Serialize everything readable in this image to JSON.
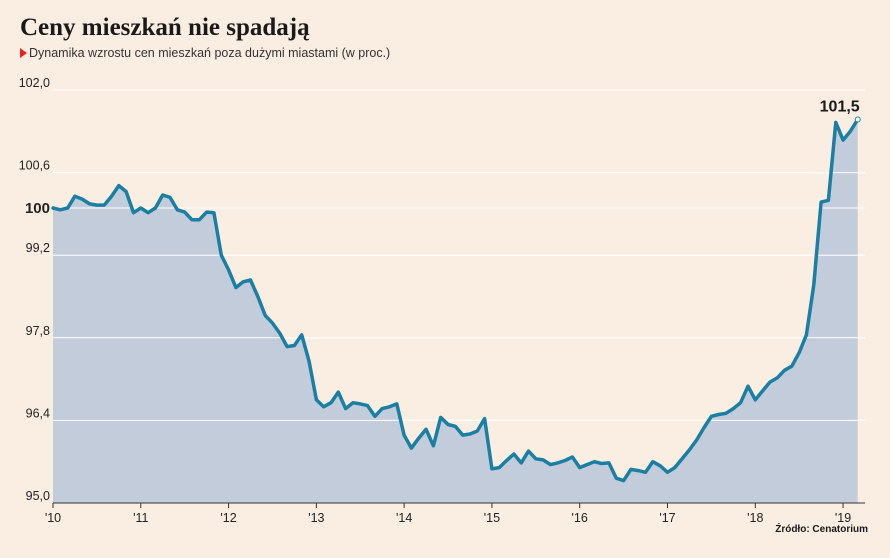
{
  "header": {
    "title": "Ceny mieszkań nie spadają",
    "subtitle": "Dynamika wzrostu cen mieszkań poza dużymi miastami (w proc.)"
  },
  "source": "Źródło: Cenatorium",
  "colors": {
    "background": "#faeee2",
    "line": "#1a7fa3",
    "area": "#c3ccdb",
    "gridline": "#ffffff",
    "marker": "#e3261b"
  },
  "chart_data": {
    "type": "area",
    "title": "Ceny mieszkań nie spadają",
    "subtitle": "Dynamika wzrostu cen mieszkań poza dużymi miastami (w proc.)",
    "xlabel": "",
    "ylabel": "",
    "ylim": [
      95.0,
      102.0
    ],
    "xlim": [
      2010.0,
      2019.25
    ],
    "grid": true,
    "y_ticks": [
      {
        "value": 95.0,
        "label": "95,0",
        "bold": false
      },
      {
        "value": 96.4,
        "label": "96,4",
        "bold": false
      },
      {
        "value": 97.8,
        "label": "97,8",
        "bold": false
      },
      {
        "value": 99.2,
        "label": "99,2",
        "bold": false
      },
      {
        "value": 100.0,
        "label": "100",
        "bold": true
      },
      {
        "value": 100.6,
        "label": "100,6",
        "bold": false
      },
      {
        "value": 102.0,
        "label": "102,0",
        "bold": false
      }
    ],
    "x_ticks": [
      {
        "value": 2010,
        "label": "'10"
      },
      {
        "value": 2011,
        "label": "'11"
      },
      {
        "value": 2012,
        "label": "'12"
      },
      {
        "value": 2013,
        "label": "'13"
      },
      {
        "value": 2014,
        "label": "'14"
      },
      {
        "value": 2015,
        "label": "'15"
      },
      {
        "value": 2016,
        "label": "'16"
      },
      {
        "value": 2017,
        "label": "'17"
      },
      {
        "value": 2018,
        "label": "'18"
      },
      {
        "value": 2019,
        "label": "'19"
      }
    ],
    "end_label": "101,5",
    "series": [
      {
        "x": [
          2010.0,
          2010.083,
          2010.167,
          2010.25,
          2010.333,
          2010.417,
          2010.5,
          2010.583,
          2010.667,
          2010.75,
          2010.833,
          2010.917,
          2011.0,
          2011.083,
          2011.167,
          2011.25,
          2011.333,
          2011.417,
          2011.5,
          2011.583,
          2011.667,
          2011.75,
          2011.833,
          2011.917,
          2012.0,
          2012.083,
          2012.167,
          2012.25,
          2012.333,
          2012.417,
          2012.5,
          2012.583,
          2012.667,
          2012.75,
          2012.833,
          2012.917,
          2013.0,
          2013.083,
          2013.167,
          2013.25,
          2013.333,
          2013.417,
          2013.5,
          2013.583,
          2013.667,
          2013.75,
          2013.833,
          2013.917,
          2014.0,
          2014.083,
          2014.167,
          2014.25,
          2014.333,
          2014.417,
          2014.5,
          2014.583,
          2014.667,
          2014.75,
          2014.833,
          2014.917,
          2015.0,
          2015.083,
          2015.167,
          2015.25,
          2015.333,
          2015.417,
          2015.5,
          2015.583,
          2015.667,
          2015.75,
          2015.833,
          2015.917,
          2016.0,
          2016.083,
          2016.167,
          2016.25,
          2016.333,
          2016.417,
          2016.5,
          2016.583,
          2016.667,
          2016.75,
          2016.833,
          2016.917,
          2017.0,
          2017.083,
          2017.167,
          2017.25,
          2017.333,
          2017.417,
          2017.5,
          2017.583,
          2017.667,
          2017.75,
          2017.833,
          2017.917,
          2018.0,
          2018.083,
          2018.167,
          2018.25,
          2018.333,
          2018.417,
          2018.5,
          2018.583,
          2018.667,
          2018.75,
          2018.833,
          2018.917,
          2019.0,
          2019.083,
          2019.167
        ],
        "values": [
          100.0,
          99.97,
          100.0,
          100.2,
          100.15,
          100.07,
          100.05,
          100.05,
          100.2,
          100.38,
          100.28,
          99.92,
          100.0,
          99.92,
          100.0,
          100.22,
          100.18,
          99.97,
          99.93,
          99.8,
          99.8,
          99.93,
          99.92,
          99.2,
          98.95,
          98.65,
          98.75,
          98.78,
          98.5,
          98.18,
          98.05,
          97.88,
          97.65,
          97.67,
          97.85,
          97.4,
          96.75,
          96.63,
          96.7,
          96.88,
          96.6,
          96.7,
          96.68,
          96.65,
          96.47,
          96.6,
          96.63,
          96.68,
          96.15,
          95.93,
          96.1,
          96.25,
          95.97,
          96.45,
          96.33,
          96.3,
          96.15,
          96.17,
          96.22,
          96.43,
          95.58,
          95.6,
          95.72,
          95.83,
          95.68,
          95.88,
          95.75,
          95.73,
          95.65,
          95.68,
          95.72,
          95.78,
          95.6,
          95.65,
          95.7,
          95.67,
          95.68,
          95.42,
          95.38,
          95.57,
          95.55,
          95.52,
          95.7,
          95.63,
          95.52,
          95.6,
          95.75,
          95.9,
          96.07,
          96.28,
          96.47,
          96.5,
          96.52,
          96.6,
          96.7,
          96.98,
          96.75,
          96.9,
          97.05,
          97.12,
          97.25,
          97.32,
          97.55,
          97.85,
          98.7,
          100.1,
          100.13,
          101.45,
          101.15,
          101.3,
          101.5
        ]
      }
    ]
  }
}
